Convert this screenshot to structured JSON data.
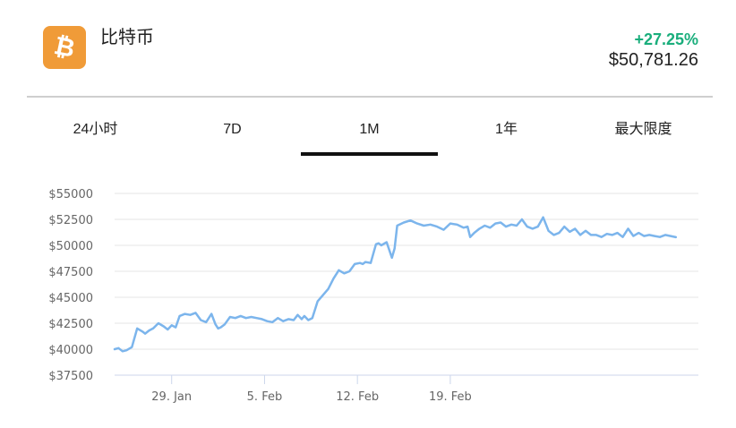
{
  "coin": {
    "icon": "bitcoin-icon",
    "name": "比特币",
    "change": "+27.25%",
    "price": "$50,781.26",
    "accent_color": "#f09b38",
    "change_color": "#1aae7c"
  },
  "tabs": [
    {
      "label": "24小时",
      "active": false
    },
    {
      "label": "7D",
      "active": false
    },
    {
      "label": "1M",
      "active": true
    },
    {
      "label": "1年",
      "active": false
    },
    {
      "label": "最大限度",
      "active": false
    }
  ],
  "chart_data": {
    "type": "line",
    "line_color": "#7cb5ec",
    "grid": true,
    "ylim": [
      37500,
      55000
    ],
    "yticks": [
      37500,
      40000,
      42500,
      45000,
      47500,
      50000,
      52500,
      55000
    ],
    "ytick_labels": [
      "$37500",
      "$40000",
      "$42500",
      "$45000",
      "$47500",
      "$50000",
      "$52500",
      "$55000"
    ],
    "xlim": [
      24.7,
      68.7
    ],
    "xticks": [
      29,
      36,
      43,
      50
    ],
    "xtick_labels": [
      "29. Jan",
      "5. Feb",
      "12. Feb",
      "19. Feb"
    ],
    "series": [
      {
        "x": [
          24.7,
          25.0,
          25.3,
          25.6,
          26.0,
          26.4,
          26.8,
          27.0,
          27.3,
          27.6,
          28.0,
          28.4,
          28.7,
          29.0,
          29.3,
          29.6,
          30.0,
          30.4,
          30.8,
          31.2,
          31.6,
          32.0,
          32.3,
          32.5,
          32.7,
          33.0,
          33.4,
          33.8,
          34.2,
          34.6,
          35.0,
          35.4,
          35.8,
          36.2,
          36.6,
          37.0,
          37.4,
          37.8,
          38.2,
          38.5,
          38.8,
          39.0,
          39.3,
          39.6,
          40.0,
          40.4,
          40.8,
          41.2,
          41.6,
          42.0,
          42.4,
          42.8,
          43.2,
          43.4,
          43.6,
          44.0,
          44.4,
          44.6,
          44.8,
          45.2,
          45.6,
          45.8,
          46.0,
          46.5,
          47.0,
          47.5,
          48.0,
          48.5,
          49.0,
          49.5,
          50.0,
          50.5,
          51.0,
          51.3,
          51.5,
          51.8,
          52.2,
          52.6,
          53.0,
          53.4,
          53.8,
          54.2,
          54.6,
          55.0,
          55.4,
          55.8,
          56.2,
          56.6,
          57.0,
          57.4,
          57.8,
          58.2,
          58.6,
          59.0,
          59.4,
          59.8,
          60.2,
          60.6,
          61.0,
          61.4,
          61.8,
          62.2,
          62.6,
          63.0,
          63.4,
          63.8,
          64.2,
          64.6,
          65.0,
          65.4,
          65.8,
          66.2,
          66.6,
          67.0
        ],
        "y": [
          40000,
          40100,
          39800,
          39900,
          40200,
          42000,
          41700,
          41500,
          41800,
          42000,
          42500,
          42200,
          41900,
          42300,
          42100,
          43200,
          43400,
          43300,
          43500,
          42800,
          42600,
          43400,
          42400,
          42000,
          42100,
          42400,
          43100,
          43000,
          43200,
          43000,
          43100,
          43000,
          42900,
          42700,
          42600,
          43000,
          42700,
          42900,
          42800,
          43300,
          42900,
          43200,
          42800,
          43000,
          44600,
          45200,
          45800,
          46800,
          47600,
          47300,
          47500,
          48200,
          48300,
          48200,
          48400,
          48300,
          50100,
          50200,
          50000,
          50300,
          48800,
          49700,
          51900,
          52200,
          52400,
          52100,
          51900,
          52000,
          51800,
          51500,
          52100,
          52000,
          51700,
          51800,
          50800,
          51200,
          51600,
          51900,
          51700,
          52100,
          52200,
          51800,
          52000,
          51900,
          52500,
          51800,
          51600,
          51800,
          52700,
          51400,
          51000,
          51200,
          51800,
          51300,
          51600,
          51000,
          51400,
          51000,
          51000,
          50800,
          51100,
          51000,
          51200,
          50800,
          51600,
          50900,
          51200,
          50900,
          51000,
          50900,
          50800,
          51000,
          50900,
          50781
        ]
      }
    ]
  }
}
